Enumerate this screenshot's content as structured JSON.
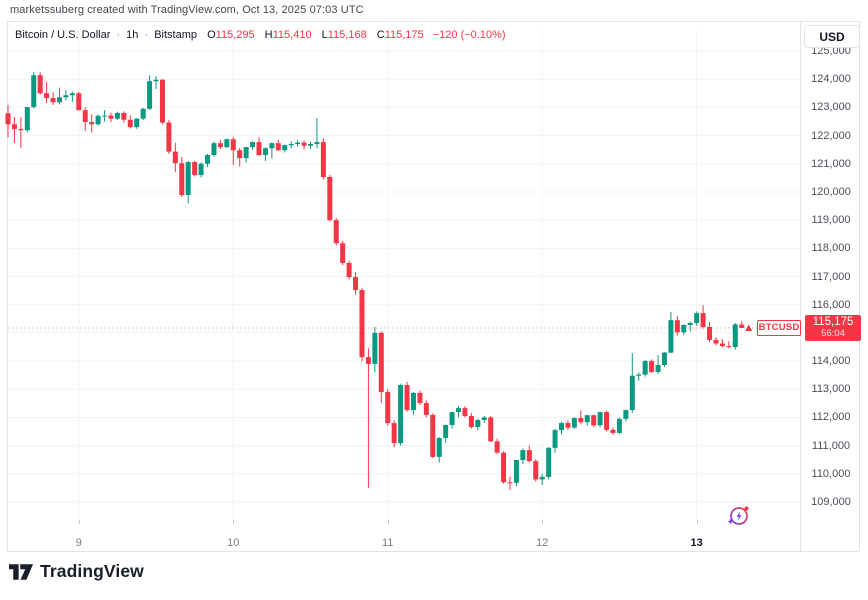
{
  "attribution": "marketssuberg created with TradingView.com, Oct 13, 2025 07:03 UTC",
  "legend": {
    "title": "Bitcoin / U.S. Dollar",
    "sep": "·",
    "interval": "1h",
    "exchange": "Bitstamp",
    "ohlc": [
      {
        "k": "O",
        "v": "115,295"
      },
      {
        "k": "H",
        "v": "115,410"
      },
      {
        "k": "L",
        "v": "115,168"
      },
      {
        "k": "C",
        "v": "115,175"
      }
    ],
    "change": "−120 (−0.10%)"
  },
  "axis": {
    "currency_button": "USD"
  },
  "price_label": {
    "symbol": "BTCUSD",
    "price": "115,175",
    "countdown": "56:04"
  },
  "footer": {
    "brand": "TradingView"
  },
  "icons": {
    "spark": "spark-icon",
    "logo": "tradingview-logo"
  },
  "colors": {
    "up": "#089981",
    "down": "#F23645",
    "grid": "#F0F3FA",
    "card_border": "#E0E3EB",
    "text_primary": "#131722",
    "text_secondary": "#787B86",
    "accent_purple": "#7A3FF2"
  },
  "chart_data": {
    "type": "candlestick",
    "title": "Bitcoin / U.S. Dollar",
    "symbol": "BTCUSD",
    "exchange": "Bitstamp",
    "interval": "1h",
    "legend_position": "top-left",
    "grid": true,
    "last_price": 115175,
    "countdown": "56:04",
    "y_axis": {
      "currency": "USD",
      "ticks": [
        125000,
        124000,
        123000,
        122000,
        121000,
        120000,
        119000,
        118000,
        117000,
        116000,
        115000,
        114000,
        113000,
        112000,
        111000,
        110000,
        109000
      ],
      "range": [
        107700,
        125700
      ]
    },
    "x_axis": {
      "unit": "day of October 2025",
      "day_ticks": [
        {
          "label": "9",
          "index": 11,
          "bold": false
        },
        {
          "label": "10",
          "index": 35,
          "bold": false
        },
        {
          "label": "11",
          "index": 59,
          "bold": false
        },
        {
          "label": "12",
          "index": 83,
          "bold": false
        },
        {
          "label": "13",
          "index": 107,
          "bold": true
        }
      ]
    },
    "candles": [
      [
        122790,
        123080,
        121940,
        122400
      ],
      [
        122400,
        122660,
        121730,
        122230
      ],
      [
        122230,
        122650,
        121550,
        122190
      ],
      [
        122190,
        123010,
        122120,
        123010
      ],
      [
        123010,
        124250,
        122970,
        124140
      ],
      [
        124140,
        124250,
        123450,
        123500
      ],
      [
        123500,
        123900,
        123150,
        123330
      ],
      [
        123330,
        123550,
        123080,
        123180
      ],
      [
        123180,
        123700,
        123100,
        123360
      ],
      [
        123360,
        123610,
        123250,
        123430
      ],
      [
        123430,
        123560,
        123200,
        123500
      ],
      [
        123500,
        123550,
        122900,
        122900
      ],
      [
        122900,
        123000,
        122160,
        122480
      ],
      [
        122480,
        122750,
        122100,
        122400
      ],
      [
        122400,
        122750,
        122350,
        122700
      ],
      [
        122700,
        122900,
        122500,
        122710
      ],
      [
        122710,
        122810,
        122480,
        122600
      ],
      [
        122600,
        122850,
        122550,
        122800
      ],
      [
        122800,
        122860,
        122450,
        122560
      ],
      [
        122560,
        122720,
        122250,
        122300
      ],
      [
        122300,
        122620,
        122240,
        122600
      ],
      [
        122600,
        122980,
        122550,
        122950
      ],
      [
        122950,
        124140,
        122900,
        123930
      ],
      [
        123930,
        124110,
        123650,
        123980
      ],
      [
        123980,
        124000,
        122400,
        122460
      ],
      [
        122460,
        122560,
        121350,
        121430
      ],
      [
        121430,
        121740,
        120700,
        121020
      ],
      [
        121020,
        121240,
        119820,
        119890
      ],
      [
        119890,
        121100,
        119600,
        121060
      ],
      [
        121060,
        121100,
        120550,
        120600
      ],
      [
        120600,
        121050,
        120520,
        121000
      ],
      [
        121000,
        121350,
        120880,
        121310
      ],
      [
        121310,
        121780,
        121250,
        121730
      ],
      [
        121730,
        121840,
        121520,
        121590
      ],
      [
        121590,
        121900,
        121550,
        121870
      ],
      [
        121870,
        121950,
        120950,
        121480
      ],
      [
        121480,
        121560,
        120900,
        121200
      ],
      [
        121200,
        121600,
        121050,
        121590
      ],
      [
        121590,
        121800,
        121500,
        121770
      ],
      [
        121770,
        121940,
        121280,
        121310
      ],
      [
        121310,
        121580,
        121100,
        121550
      ],
      [
        121550,
        121760,
        121180,
        121730
      ],
      [
        121730,
        121850,
        121450,
        121480
      ],
      [
        121480,
        121680,
        121400,
        121660
      ],
      [
        121660,
        121800,
        121550,
        121700
      ],
      [
        121700,
        121850,
        121600,
        121750
      ],
      [
        121750,
        121820,
        121500,
        121640
      ],
      [
        121640,
        121780,
        121520,
        121700
      ],
      [
        121700,
        122620,
        121550,
        121770
      ],
      [
        121770,
        121900,
        120450,
        120530
      ],
      [
        120530,
        120600,
        118950,
        119000
      ],
      [
        119000,
        119080,
        118100,
        118180
      ],
      [
        118180,
        118260,
        117400,
        117480
      ],
      [
        117480,
        117560,
        116900,
        116980
      ],
      [
        116980,
        117160,
        116350,
        116520
      ],
      [
        116520,
        116600,
        114000,
        114140
      ],
      [
        114140,
        114450,
        109500,
        113900
      ],
      [
        113900,
        115210,
        113600,
        115000
      ],
      [
        115000,
        115060,
        112510,
        112900
      ],
      [
        112900,
        113000,
        111700,
        111800
      ],
      [
        111800,
        111900,
        110950,
        111090
      ],
      [
        111090,
        113200,
        111000,
        113150
      ],
      [
        113150,
        113260,
        112200,
        112260
      ],
      [
        112260,
        112900,
        112100,
        112870
      ],
      [
        112870,
        112950,
        112450,
        112510
      ],
      [
        112510,
        112600,
        112000,
        112090
      ],
      [
        112090,
        112150,
        110560,
        110600
      ],
      [
        110600,
        111300,
        110400,
        111270
      ],
      [
        111270,
        111750,
        111100,
        111730
      ],
      [
        111730,
        112200,
        111600,
        112190
      ],
      [
        112190,
        112400,
        112000,
        112330
      ],
      [
        112330,
        112400,
        112000,
        112050
      ],
      [
        112050,
        112160,
        111600,
        111660
      ],
      [
        111660,
        111950,
        111550,
        111910
      ],
      [
        111910,
        112050,
        111800,
        112000
      ],
      [
        112000,
        112050,
        111130,
        111150
      ],
      [
        111150,
        111250,
        110700,
        110750
      ],
      [
        110750,
        110800,
        109650,
        109700
      ],
      [
        109700,
        109900,
        109430,
        109680
      ],
      [
        109680,
        110500,
        109550,
        110490
      ],
      [
        110490,
        110900,
        110350,
        110840
      ],
      [
        110840,
        111000,
        110400,
        110450
      ],
      [
        110450,
        110520,
        109720,
        109800
      ],
      [
        109800,
        110000,
        109600,
        109890
      ],
      [
        109890,
        110950,
        109800,
        110920
      ],
      [
        110920,
        111600,
        110750,
        111550
      ],
      [
        111550,
        111850,
        111400,
        111800
      ],
      [
        111800,
        111900,
        111550,
        111640
      ],
      [
        111640,
        112000,
        111600,
        111980
      ],
      [
        111980,
        112250,
        111750,
        111830
      ],
      [
        111830,
        112090,
        111700,
        112080
      ],
      [
        112080,
        112100,
        111650,
        111720
      ],
      [
        111720,
        112200,
        111650,
        112190
      ],
      [
        112190,
        112250,
        111500,
        111560
      ],
      [
        111560,
        111650,
        111380,
        111450
      ],
      [
        111450,
        112000,
        111400,
        111950
      ],
      [
        111950,
        112280,
        111850,
        112260
      ],
      [
        112260,
        114280,
        112160,
        113480
      ],
      [
        113480,
        113600,
        113300,
        113520
      ],
      [
        113520,
        114040,
        113450,
        114000
      ],
      [
        114000,
        114060,
        113570,
        113610
      ],
      [
        113610,
        114210,
        113550,
        113860
      ],
      [
        113860,
        114320,
        113790,
        114300
      ],
      [
        114300,
        115740,
        114280,
        115450
      ],
      [
        115450,
        115600,
        114900,
        115020
      ],
      [
        115020,
        115300,
        114920,
        115280
      ],
      [
        115280,
        115400,
        115050,
        115350
      ],
      [
        115350,
        115760,
        115250,
        115700
      ],
      [
        115700,
        115990,
        115150,
        115210
      ],
      [
        115210,
        115380,
        114670,
        114750
      ],
      [
        114750,
        114850,
        114570,
        114620
      ],
      [
        114620,
        114780,
        114480,
        114530
      ],
      [
        114530,
        114700,
        114450,
        114500
      ],
      [
        114500,
        115350,
        114400,
        115300
      ],
      [
        115295,
        115410,
        115168,
        115175
      ]
    ]
  }
}
